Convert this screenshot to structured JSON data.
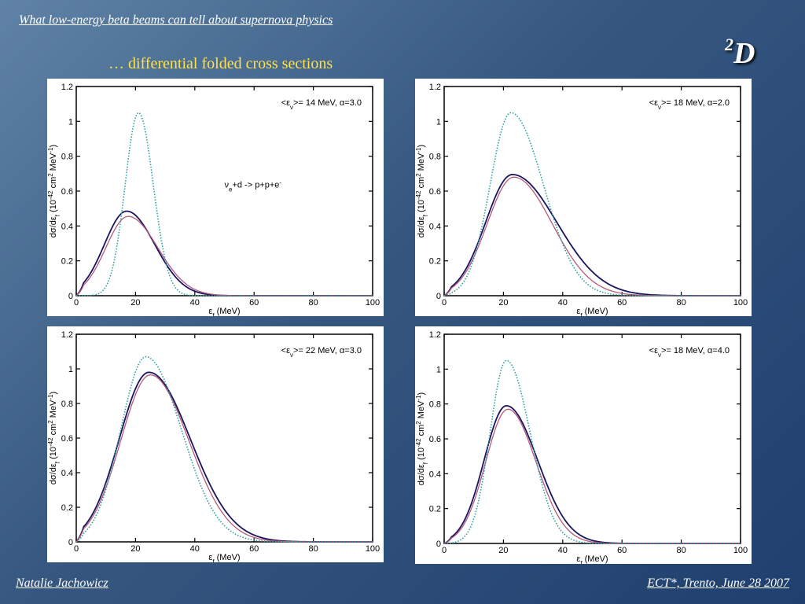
{
  "header": {
    "title": "What low-energy beta beams can tell about supernova physics",
    "subtitle": "…   differential folded cross sections",
    "badge_sup": "2",
    "badge_main": "D"
  },
  "footer": {
    "author": "Natalie Jachowicz",
    "event": "ECT*, Trento, June 28 2007"
  },
  "colors": {
    "solid_dark": "#1a1560",
    "solid_mauve": "#b45a78",
    "dotted_teal": "#2aa0a0"
  },
  "chart_data": [
    {
      "type": "line",
      "legend_text": "<εν>= 14 MeV, α=3.0",
      "reaction": "νe+d -> p+p+e-",
      "xlabel": "εf (MeV)",
      "ylabel": "dσ/dεf (10-42 cm2 MeV-1)",
      "xlim": [
        0,
        100
      ],
      "ylim": [
        0,
        1.2
      ],
      "xticks": [
        "0",
        "20",
        "40",
        "60",
        "80",
        "100"
      ],
      "yticks": [
        "0",
        "0.2",
        "0.4",
        "0.6",
        "0.8",
        "1",
        "1.2"
      ],
      "series": [
        {
          "style": "solid-dark",
          "peak": 0.485,
          "mu": 17,
          "sl": 7.5,
          "sr": 9.5
        },
        {
          "style": "solid-mauve",
          "peak": 0.455,
          "mu": 17.5,
          "sl": 7.5,
          "sr": 10
        },
        {
          "style": "dotted-teal",
          "peak": 1.05,
          "mu": 21,
          "sl": 4.5,
          "sr": 5
        }
      ]
    },
    {
      "type": "line",
      "legend_text": "<εν>= 18 MeV, α=2.0",
      "reaction": "",
      "xlabel": "εf (MeV)",
      "ylabel": "dσ/dεf (10-42 cm2 MeV-1)",
      "xlim": [
        0,
        100
      ],
      "ylim": [
        0,
        1.2
      ],
      "xticks": [
        "0",
        "20",
        "40",
        "60",
        "80",
        "100"
      ],
      "yticks": [
        "0",
        "0.2",
        "0.4",
        "0.6",
        "0.8",
        "1",
        "1.2"
      ],
      "series": [
        {
          "style": "solid-dark",
          "peak": 0.695,
          "mu": 23,
          "sl": 9,
          "sr": 15
        },
        {
          "style": "solid-mauve",
          "peak": 0.68,
          "mu": 23.5,
          "sl": 9,
          "sr": 13
        },
        {
          "style": "dotted-teal",
          "peak": 1.05,
          "mu": 22.5,
          "sl": 7,
          "sr": 11
        }
      ]
    },
    {
      "type": "line",
      "legend_text": "<εν>= 22 MeV, α=3.0",
      "reaction": "",
      "xlabel": "εf (MeV)",
      "ylabel": "dσ/dεf (10-42 cm2 MeV-1)",
      "xlim": [
        0,
        100
      ],
      "ylim": [
        0,
        1.2
      ],
      "xticks": [
        "0",
        "20",
        "40",
        "60",
        "80",
        "100"
      ],
      "yticks": [
        "0",
        "0.2",
        "0.4",
        "0.6",
        "0.8",
        "1",
        "1.2"
      ],
      "series": [
        {
          "style": "solid-dark",
          "peak": 0.98,
          "mu": 24.5,
          "sl": 10,
          "sr": 14
        },
        {
          "style": "solid-mauve",
          "peak": 0.965,
          "mu": 25,
          "sl": 10,
          "sr": 13
        },
        {
          "style": "dotted-teal",
          "peak": 1.07,
          "mu": 23.5,
          "sl": 8.5,
          "sr": 12
        }
      ]
    },
    {
      "type": "line",
      "legend_text": "<εν>= 18 MeV, α=4.0",
      "reaction": "",
      "xlabel": "εf (MeV)",
      "ylabel": "dσ/dεf (10-42 cm2 MeV-1)",
      "xlim": [
        0,
        100
      ],
      "ylim": [
        0,
        1.2
      ],
      "xticks": [
        "0",
        "20",
        "40",
        "60",
        "80",
        "100"
      ],
      "yticks": [
        "0",
        "0.2",
        "0.4",
        "0.6",
        "0.8",
        "1",
        "1.2"
      ],
      "series": [
        {
          "style": "solid-dark",
          "peak": 0.79,
          "mu": 21,
          "sl": 7.5,
          "sr": 10.5
        },
        {
          "style": "solid-mauve",
          "peak": 0.77,
          "mu": 21.5,
          "sl": 7.5,
          "sr": 9.5
        },
        {
          "style": "dotted-teal",
          "peak": 1.05,
          "mu": 21,
          "sl": 5.5,
          "sr": 8
        }
      ]
    }
  ]
}
